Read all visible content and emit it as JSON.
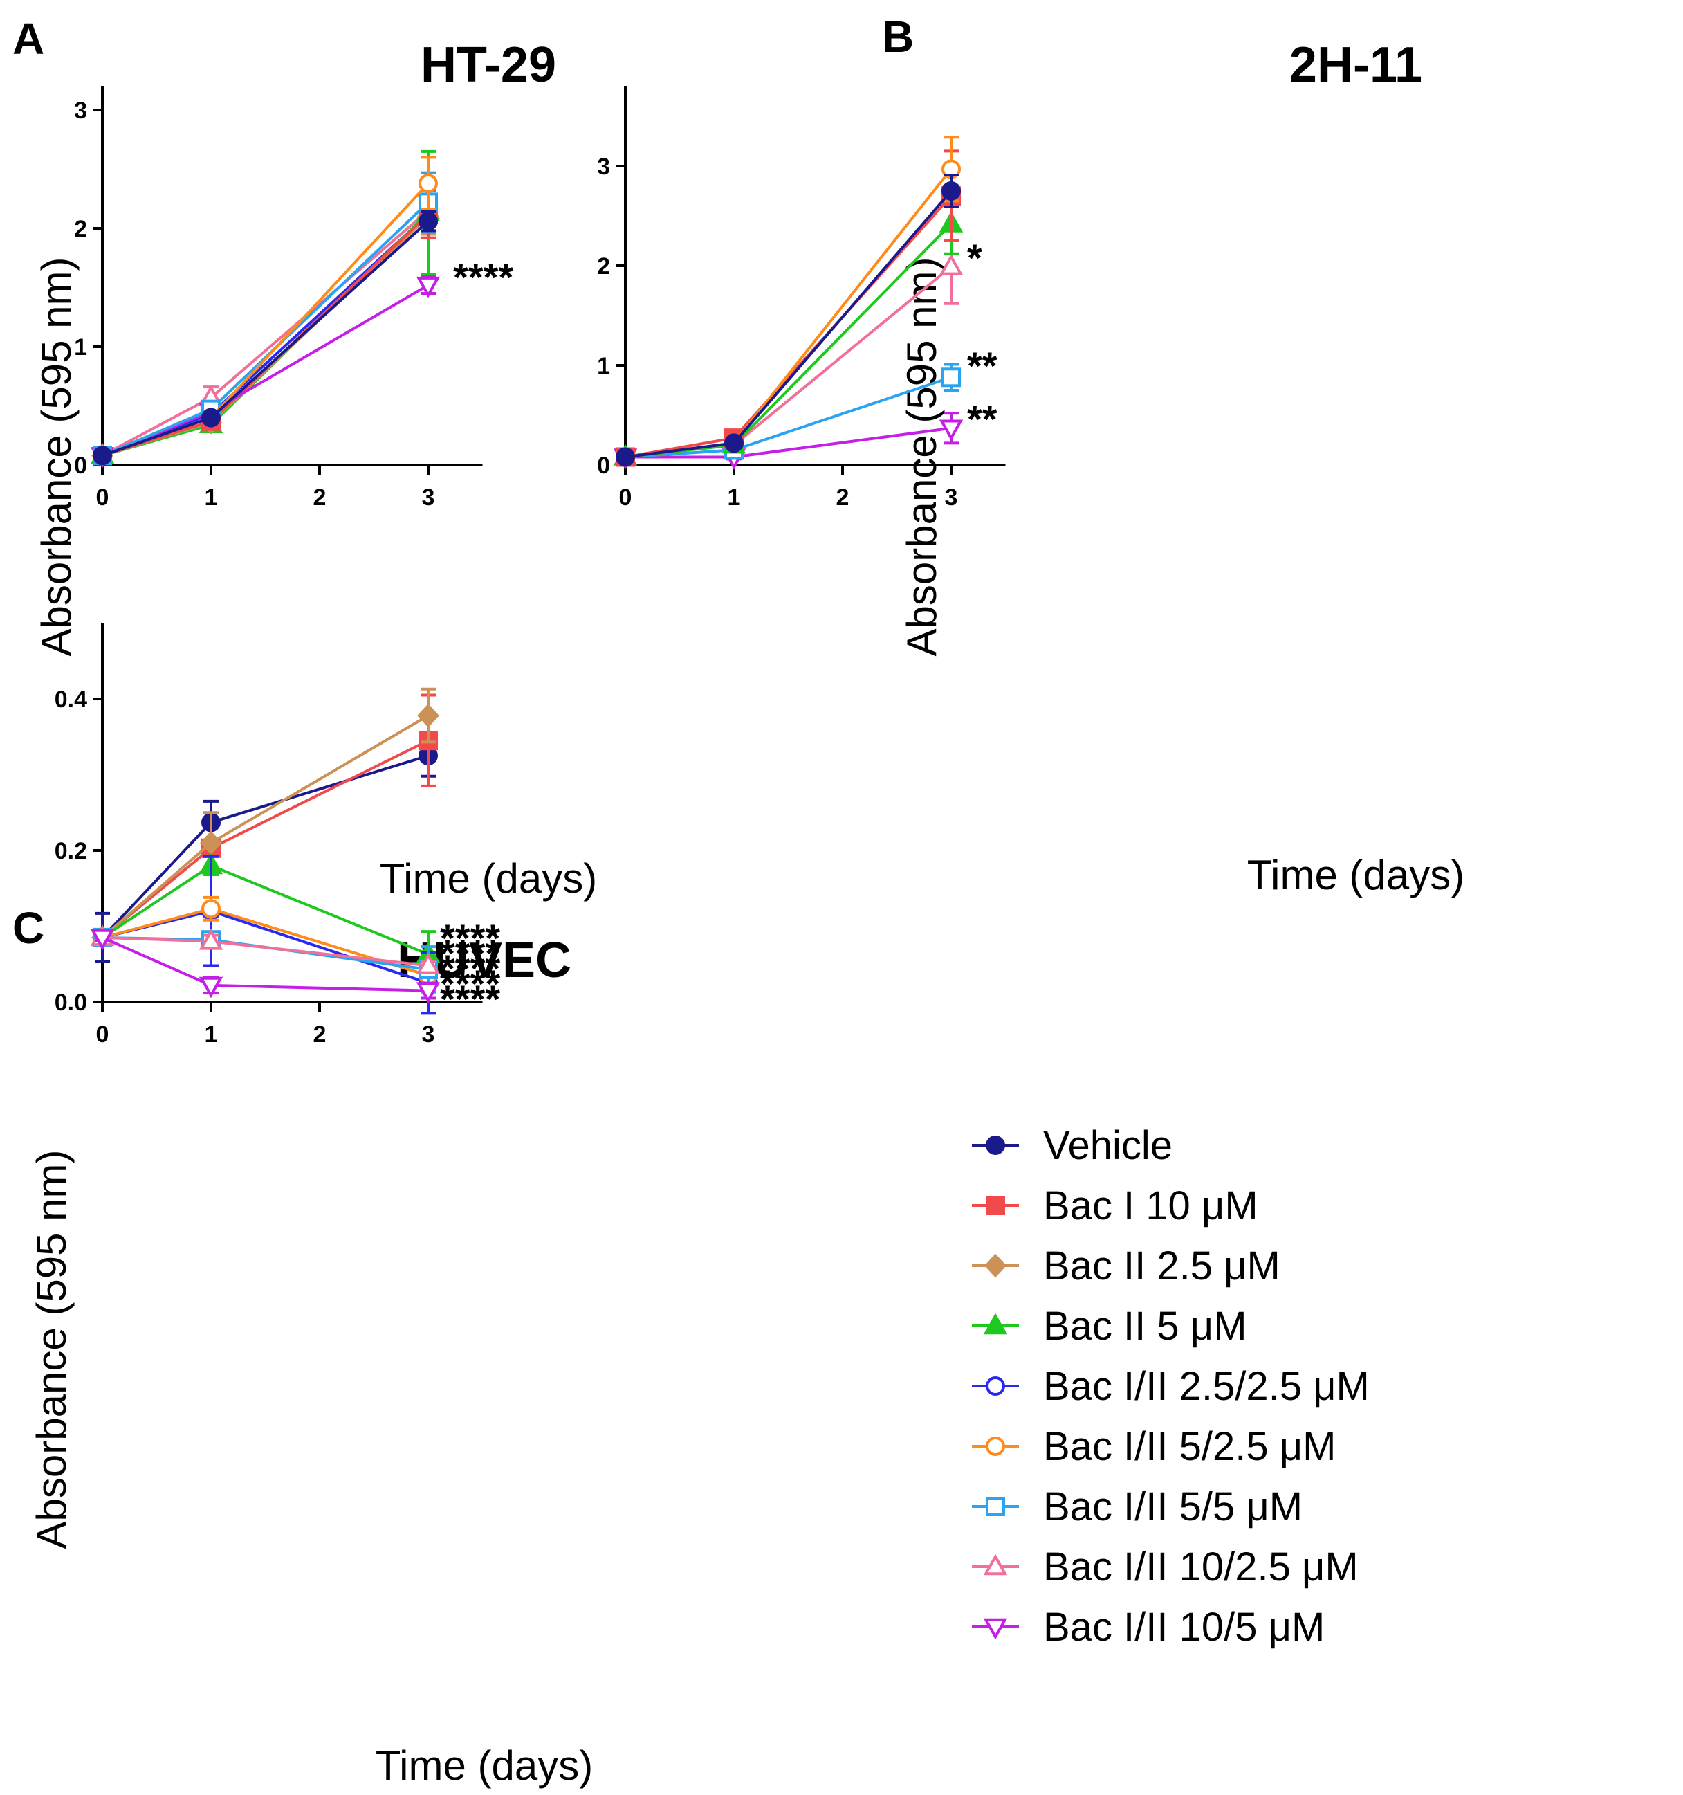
{
  "chart_data": [
    {
      "type": "line",
      "panel": "A",
      "title": "HT-29",
      "xlabel": "Time (days)",
      "ylabel": "Absorbance (595 nm)",
      "x": [
        0,
        1,
        3
      ],
      "xticks": [
        "0",
        "1",
        "2",
        "3"
      ],
      "yticks": [
        "0",
        "1",
        "2",
        "3"
      ],
      "xlim": [
        0,
        3.5
      ],
      "ylim": [
        0,
        3.2
      ],
      "series": [
        {
          "name": "Bac I/II 10/2.5 μM",
          "values": [
            0.08,
            0.57,
            2.15
          ],
          "errors": [
            0.01,
            0.09,
            0.2
          ]
        },
        {
          "name": "Bac I/II 2.5/2.5 μM",
          "values": [
            0.08,
            0.43,
            2.12
          ],
          "errors": [
            0.01,
            0.05,
            0.15
          ]
        },
        {
          "name": "Bac II 5 μM",
          "values": [
            0.08,
            0.34,
            2.13
          ],
          "errors": [
            0.01,
            0.03,
            0.52
          ]
        },
        {
          "name": "Bac II 2.5 μM",
          "values": [
            0.08,
            0.36,
            2.1
          ],
          "errors": [
            0.01,
            0.03,
            0.15
          ]
        },
        {
          "name": "Bac I 10 μM",
          "values": [
            0.08,
            0.37,
            2.12
          ],
          "errors": [
            0.01,
            0.03,
            0.2
          ]
        },
        {
          "name": "Bac I/II 10/5 μM",
          "values": [
            0.08,
            0.45,
            1.52
          ],
          "errors": [
            0.01,
            0.04,
            0.07
          ]
        },
        {
          "name": "Bac I/II 5/5 μM",
          "values": [
            0.08,
            0.47,
            2.22
          ],
          "errors": [
            0.01,
            0.04,
            0.25
          ]
        },
        {
          "name": "Bac I/II 5/2.5 μM",
          "values": [
            0.08,
            0.4,
            2.38
          ],
          "errors": [
            0.01,
            0.04,
            0.22
          ]
        },
        {
          "name": "Vehicle",
          "values": [
            0.08,
            0.4,
            2.06
          ],
          "errors": [
            0.01,
            0.04,
            0.08
          ]
        }
      ],
      "annotations": [
        "****"
      ],
      "legend": "shared"
    },
    {
      "type": "line",
      "panel": "B",
      "title": "2H-11",
      "xlabel": "Time (days)",
      "ylabel": "Absorbance (595 nm)",
      "x": [
        0,
        1,
        3
      ],
      "xticks": [
        "0",
        "1",
        "2",
        "3"
      ],
      "yticks": [
        "0",
        "1",
        "2",
        "3"
      ],
      "xlim": [
        0,
        3.5
      ],
      "ylim": [
        0,
        3.8
      ],
      "series": [
        {
          "name": "Bac I/II 10/5 μM",
          "values": [
            0.08,
            0.08,
            0.37
          ],
          "errors": [
            0.01,
            0.02,
            0.15
          ]
        },
        {
          "name": "Bac I/II 5/5 μM",
          "values": [
            0.08,
            0.15,
            0.88
          ],
          "errors": [
            0.01,
            0.02,
            0.13
          ]
        },
        {
          "name": "Bac I/II 10/2.5 μM",
          "values": [
            0.08,
            0.2,
            1.99
          ],
          "errors": [
            0.01,
            0.02,
            0.37
          ]
        },
        {
          "name": "Bac II 5 μM",
          "values": [
            0.08,
            0.2,
            2.42
          ],
          "errors": [
            0.01,
            0.02,
            0.3
          ]
        },
        {
          "name": "Bac I 10 μM",
          "values": [
            0.08,
            0.27,
            2.7
          ],
          "errors": [
            0.01,
            0.03,
            0.45
          ]
        },
        {
          "name": "Bac I/II 5/2.5 μM",
          "values": [
            0.08,
            0.22,
            2.97
          ],
          "errors": [
            0.01,
            0.02,
            0.32
          ]
        },
        {
          "name": "Vehicle",
          "values": [
            0.08,
            0.22,
            2.75
          ],
          "errors": [
            0.01,
            0.03,
            0.16
          ]
        }
      ],
      "annotations": [
        "*",
        "**",
        "**"
      ],
      "legend": "shared"
    },
    {
      "type": "line",
      "panel": "C",
      "title": "HUVEC",
      "xlabel": "Time (days)",
      "ylabel": "Absorbance (595 nm)",
      "x": [
        0,
        1,
        3
      ],
      "xticks": [
        "0",
        "1",
        "2",
        "3"
      ],
      "yticks": [
        "0.0",
        "0.2",
        "0.4"
      ],
      "xlim": [
        0,
        3.5
      ],
      "ylim": [
        0,
        0.5
      ],
      "series": [
        {
          "name": "Vehicle",
          "values": [
            0.085,
            0.237,
            0.325
          ],
          "errors": [
            0.032,
            0.028,
            0.027
          ]
        },
        {
          "name": "Bac I 10 μM",
          "values": [
            0.085,
            0.203,
            0.345
          ],
          "errors": [
            0.004,
            0.01,
            0.06
          ]
        },
        {
          "name": "Bac II 2.5 μM",
          "values": [
            0.085,
            0.21,
            0.378
          ],
          "errors": [
            0.004,
            0.04,
            0.035
          ]
        },
        {
          "name": "Bac II 5 μM",
          "values": [
            0.085,
            0.18,
            0.063
          ],
          "errors": [
            0.004,
            0.012,
            0.03
          ]
        },
        {
          "name": "Bac I/II 2.5/2.5 μM",
          "values": [
            0.085,
            0.12,
            0.025
          ],
          "errors": [
            0.004,
            0.072,
            0.04
          ]
        },
        {
          "name": "Bac I/II 5/2.5 μM",
          "values": [
            0.085,
            0.123,
            0.035
          ],
          "errors": [
            0.004,
            0.015,
            0.01
          ]
        },
        {
          "name": "Bac I/II 5/5 μM",
          "values": [
            0.085,
            0.082,
            0.043
          ],
          "errors": [
            0.004,
            0.008,
            0.03
          ]
        },
        {
          "name": "Bac I/II 10/2.5 μM",
          "values": [
            0.085,
            0.08,
            0.048
          ],
          "errors": [
            0.004,
            0.008,
            0.005
          ]
        },
        {
          "name": "Bac I/II 10/5 μM",
          "values": [
            0.085,
            0.022,
            0.015
          ],
          "errors": [
            0.004,
            0.01,
            0.01
          ]
        }
      ],
      "annotations": [
        "****",
        "****",
        "****",
        "****",
        "****"
      ],
      "legend": "right"
    }
  ],
  "legend": [
    {
      "name": "Vehicle",
      "color": "#1a1a8c",
      "marker": "circle",
      "filled": true
    },
    {
      "name": "Bac I 10 μM",
      "color": "#f24a4a",
      "marker": "square",
      "filled": true
    },
    {
      "name": "Bac II 2.5 μM",
      "color": "#cc9155",
      "marker": "diamond",
      "filled": true
    },
    {
      "name": "Bac II 5 μM",
      "color": "#1ec81e",
      "marker": "triangle-up",
      "filled": true
    },
    {
      "name": "Bac I/II 2.5/2.5 μM",
      "color": "#2a2aee",
      "marker": "circle",
      "filled": false
    },
    {
      "name": "Bac I/II 5/2.5 μM",
      "color": "#ff8c1a",
      "marker": "circle",
      "filled": false
    },
    {
      "name": "Bac I/II 5/5 μM",
      "color": "#2aa4f0",
      "marker": "square",
      "filled": false
    },
    {
      "name": "Bac I/II 10/2.5 μM",
      "color": "#f0709a",
      "marker": "triangle-up",
      "filled": false
    },
    {
      "name": "Bac I/II 10/5 μM",
      "color": "#c51ee6",
      "marker": "triangle-down",
      "filled": false
    }
  ]
}
